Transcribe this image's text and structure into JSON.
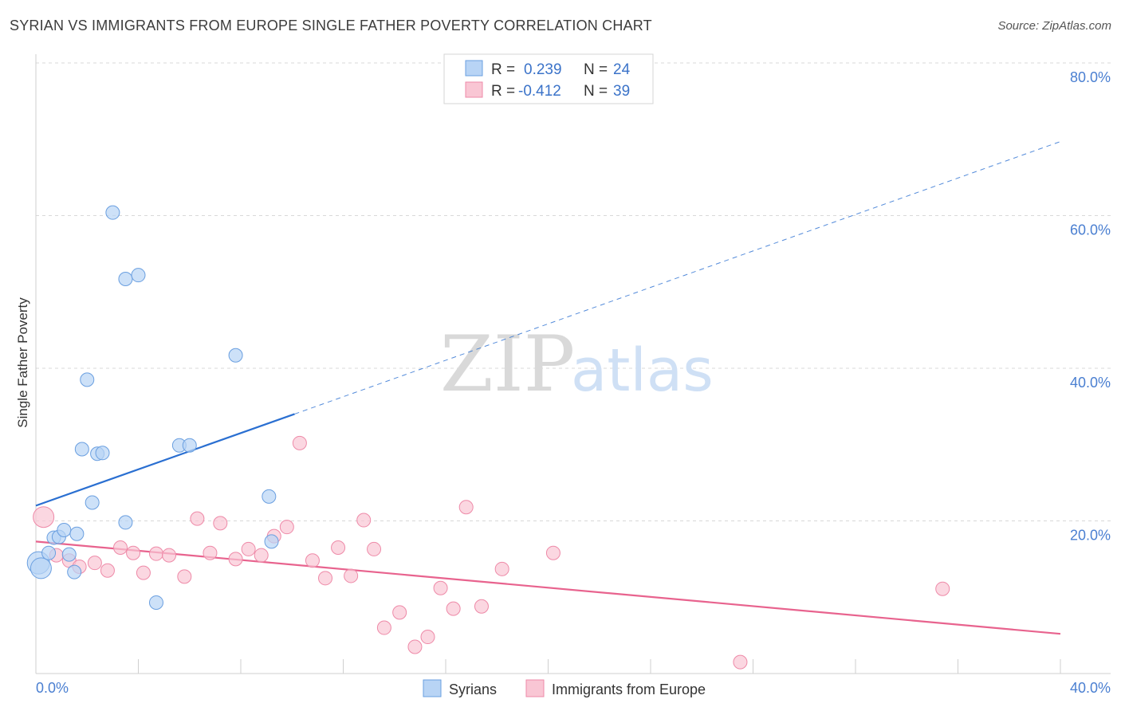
{
  "title": "SYRIAN VS IMMIGRANTS FROM EUROPE SINGLE FATHER POVERTY CORRELATION CHART",
  "source": "Source: ZipAtlas.com",
  "watermark": {
    "zip": "ZIP",
    "atlas": "atlas"
  },
  "legend": {
    "rows": [
      {
        "r_label": "R =",
        "r_value": "0.239",
        "n_label": "N =",
        "n_value": "24"
      },
      {
        "r_label": "R =",
        "r_value": "-0.412",
        "n_label": "N =",
        "n_value": "39"
      }
    ]
  },
  "bottom_legend": {
    "items": [
      "Syrians",
      "Immigrants from Europe"
    ]
  },
  "colors": {
    "syrians_fill": "#b8d4f5",
    "syrians_stroke": "#6a9fe0",
    "syrians_line": "#2a6fd1",
    "europe_fill": "#f9c6d4",
    "europe_stroke": "#ee8aa8",
    "europe_line": "#e8638e",
    "grid": "#d8d8d8",
    "tick_label": "#4a7fd1"
  },
  "chart_data": {
    "type": "scatter",
    "title": "SYRIAN VS IMMIGRANTS FROM EUROPE SINGLE FATHER POVERTY CORRELATION CHART",
    "xlabel": "",
    "ylabel": "Single Father Poverty",
    "xlim": [
      0,
      40
    ],
    "ylim": [
      0,
      80
    ],
    "x_tick_labels": [
      "0.0%",
      "40.0%"
    ],
    "y_tick_labels": [
      "80.0%",
      "60.0%",
      "40.0%",
      "20.0%"
    ],
    "y_ticks": [
      80,
      60,
      40,
      20
    ],
    "grid": true,
    "legend_position": "top-center",
    "series": [
      {
        "name": "Syrians",
        "r": 0.239,
        "n": 24,
        "trend": {
          "x0": 0,
          "y0": 22.0,
          "x1": 10.1,
          "y1": 34.0,
          "dash_to_x": 40,
          "dash_to_y": 69.7
        },
        "points": [
          [
            0.1,
            14.5,
            3
          ],
          [
            0.2,
            13.8,
            2
          ],
          [
            0.5,
            15.8,
            1
          ],
          [
            0.7,
            17.8,
            1
          ],
          [
            0.9,
            17.9,
            1
          ],
          [
            1.1,
            18.8,
            1
          ],
          [
            1.3,
            15.6,
            1
          ],
          [
            1.5,
            13.3,
            1
          ],
          [
            1.6,
            18.3,
            1
          ],
          [
            1.8,
            29.4,
            1
          ],
          [
            2.0,
            38.5,
            1
          ],
          [
            2.2,
            22.4,
            1
          ],
          [
            2.4,
            28.8,
            1
          ],
          [
            2.6,
            28.9,
            1
          ],
          [
            3.0,
            60.4,
            1
          ],
          [
            3.5,
            51.7,
            1
          ],
          [
            3.5,
            19.8,
            1
          ],
          [
            4.0,
            52.2,
            1
          ],
          [
            4.7,
            9.3,
            1
          ],
          [
            5.6,
            29.9,
            1
          ],
          [
            6.0,
            29.9,
            1
          ],
          [
            7.8,
            41.7,
            1
          ],
          [
            9.1,
            23.2,
            1
          ],
          [
            9.2,
            17.3,
            1
          ]
        ]
      },
      {
        "name": "Immigrants from Europe",
        "r": -0.412,
        "n": 39,
        "trend": {
          "x0": 0,
          "y0": 17.3,
          "x1": 40,
          "y1": 5.2
        },
        "points": [
          [
            0.3,
            20.5,
            2
          ],
          [
            0.8,
            15.5,
            1
          ],
          [
            1.3,
            14.8,
            1
          ],
          [
            1.7,
            14.0,
            1
          ],
          [
            2.3,
            14.5,
            1
          ],
          [
            2.8,
            13.5,
            1
          ],
          [
            3.3,
            16.5,
            1
          ],
          [
            3.8,
            15.8,
            1
          ],
          [
            4.2,
            13.2,
            1
          ],
          [
            4.7,
            15.7,
            1
          ],
          [
            5.2,
            15.5,
            1
          ],
          [
            5.8,
            12.7,
            1
          ],
          [
            6.3,
            20.3,
            1
          ],
          [
            6.8,
            15.8,
            1
          ],
          [
            7.2,
            19.7,
            1
          ],
          [
            7.8,
            15.0,
            1
          ],
          [
            8.3,
            16.3,
            1
          ],
          [
            8.8,
            15.5,
            1
          ],
          [
            9.3,
            18.0,
            1
          ],
          [
            9.8,
            19.2,
            1
          ],
          [
            10.3,
            30.2,
            1
          ],
          [
            10.8,
            14.8,
            1
          ],
          [
            11.3,
            12.5,
            1
          ],
          [
            11.8,
            16.5,
            1
          ],
          [
            12.3,
            12.8,
            1
          ],
          [
            12.8,
            20.1,
            1
          ],
          [
            13.2,
            16.3,
            1
          ],
          [
            13.6,
            6.0,
            1
          ],
          [
            14.2,
            8.0,
            1
          ],
          [
            14.8,
            3.5,
            1
          ],
          [
            15.3,
            4.8,
            1
          ],
          [
            15.8,
            11.2,
            1
          ],
          [
            16.3,
            8.5,
            1
          ],
          [
            16.8,
            21.8,
            1
          ],
          [
            17.4,
            8.8,
            1
          ],
          [
            18.2,
            13.7,
            1
          ],
          [
            20.2,
            15.8,
            1
          ],
          [
            27.5,
            1.5,
            1
          ],
          [
            35.4,
            11.1,
            1
          ]
        ]
      }
    ]
  }
}
